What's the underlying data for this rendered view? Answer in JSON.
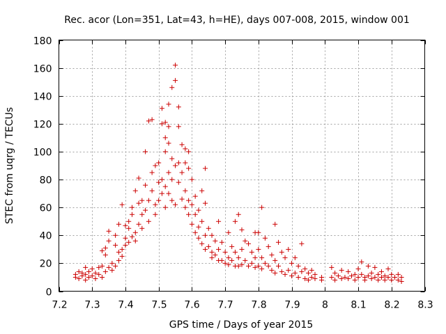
{
  "chart_data": {
    "type": "scatter",
    "title": "Rec. acor (Lon=351, Lat=43, h=HE), days 007-008, 2015, window 001",
    "xlabel": "GPS time / Days of year 2015",
    "ylabel": "STEC from uqrg / TECUs",
    "xlim": [
      7.2,
      8.3
    ],
    "ylim": [
      0,
      180
    ],
    "xticks": [
      7.2,
      7.3,
      7.4,
      7.5,
      7.6,
      7.7,
      7.8,
      7.9,
      8,
      8.1,
      8.2,
      8.3
    ],
    "xtick_labels": [
      "7.2",
      "7.3",
      "7.4",
      "7.5",
      "7.6",
      "7.7",
      "7.8",
      "7.9",
      "8",
      "8.1",
      "8.2",
      "8.3"
    ],
    "yticks": [
      0,
      20,
      40,
      60,
      80,
      100,
      120,
      140,
      160,
      180
    ],
    "ytick_labels": [
      "0",
      "20",
      "40",
      "60",
      "80",
      "100",
      "120",
      "140",
      "160",
      "180"
    ],
    "grid": true,
    "marker": "+",
    "color": "#cc0000",
    "series": [
      {
        "name": "STEC",
        "points": [
          [
            7.25,
            10
          ],
          [
            7.25,
            12
          ],
          [
            7.26,
            14
          ],
          [
            7.26,
            9
          ],
          [
            7.27,
            11
          ],
          [
            7.27,
            13
          ],
          [
            7.28,
            8
          ],
          [
            7.28,
            12
          ],
          [
            7.28,
            17
          ],
          [
            7.29,
            10
          ],
          [
            7.29,
            14
          ],
          [
            7.3,
            11
          ],
          [
            7.3,
            16
          ],
          [
            7.31,
            13
          ],
          [
            7.31,
            9
          ],
          [
            7.32,
            17
          ],
          [
            7.32,
            12
          ],
          [
            7.33,
            10
          ],
          [
            7.33,
            29
          ],
          [
            7.33,
            18
          ],
          [
            7.34,
            14
          ],
          [
            7.34,
            31
          ],
          [
            7.34,
            26
          ],
          [
            7.35,
            17
          ],
          [
            7.35,
            43
          ],
          [
            7.35,
            36
          ],
          [
            7.36,
            20
          ],
          [
            7.36,
            15
          ],
          [
            7.37,
            40
          ],
          [
            7.37,
            33
          ],
          [
            7.37,
            18
          ],
          [
            7.38,
            22
          ],
          [
            7.38,
            48
          ],
          [
            7.38,
            28
          ],
          [
            7.39,
            25
          ],
          [
            7.39,
            30
          ],
          [
            7.39,
            62
          ],
          [
            7.4,
            47
          ],
          [
            7.4,
            33
          ],
          [
            7.4,
            38
          ],
          [
            7.41,
            35
          ],
          [
            7.41,
            45
          ],
          [
            7.41,
            50
          ],
          [
            7.42,
            39
          ],
          [
            7.42,
            60
          ],
          [
            7.42,
            55
          ],
          [
            7.43,
            42
          ],
          [
            7.43,
            72
          ],
          [
            7.43,
            36
          ],
          [
            7.44,
            48
          ],
          [
            7.44,
            63
          ],
          [
            7.44,
            81
          ],
          [
            7.45,
            55
          ],
          [
            7.45,
            65
          ],
          [
            7.45,
            45
          ],
          [
            7.46,
            100
          ],
          [
            7.46,
            76
          ],
          [
            7.46,
            58
          ],
          [
            7.47,
            122
          ],
          [
            7.47,
            65
          ],
          [
            7.47,
            50
          ],
          [
            7.48,
            123
          ],
          [
            7.48,
            85
          ],
          [
            7.48,
            72
          ],
          [
            7.49,
            62
          ],
          [
            7.49,
            90
          ],
          [
            7.49,
            55
          ],
          [
            7.5,
            78
          ],
          [
            7.5,
            92
          ],
          [
            7.5,
            65
          ],
          [
            7.51,
            131
          ],
          [
            7.51,
            120
          ],
          [
            7.51,
            80
          ],
          [
            7.51,
            70
          ],
          [
            7.52,
            121
          ],
          [
            7.52,
            110
          ],
          [
            7.52,
            100
          ],
          [
            7.52,
            75
          ],
          [
            7.52,
            60
          ],
          [
            7.53,
            134
          ],
          [
            7.53,
            118
          ],
          [
            7.53,
            106
          ],
          [
            7.53,
            85
          ],
          [
            7.53,
            70
          ],
          [
            7.54,
            146
          ],
          [
            7.54,
            95
          ],
          [
            7.54,
            80
          ],
          [
            7.54,
            65
          ],
          [
            7.55,
            162
          ],
          [
            7.55,
            151
          ],
          [
            7.55,
            90
          ],
          [
            7.55,
            62
          ],
          [
            7.56,
            132
          ],
          [
            7.56,
            118
          ],
          [
            7.56,
            92
          ],
          [
            7.56,
            78
          ],
          [
            7.57,
            105
          ],
          [
            7.57,
            85
          ],
          [
            7.57,
            66
          ],
          [
            7.58,
            102
          ],
          [
            7.58,
            92
          ],
          [
            7.58,
            72
          ],
          [
            7.58,
            60
          ],
          [
            7.59,
            100
          ],
          [
            7.59,
            88
          ],
          [
            7.59,
            65
          ],
          [
            7.59,
            55
          ],
          [
            7.6,
            80
          ],
          [
            7.6,
            62
          ],
          [
            7.6,
            48
          ],
          [
            7.61,
            68
          ],
          [
            7.61,
            55
          ],
          [
            7.61,
            42
          ],
          [
            7.62,
            58
          ],
          [
            7.62,
            46
          ],
          [
            7.62,
            38
          ],
          [
            7.63,
            72
          ],
          [
            7.63,
            50
          ],
          [
            7.63,
            34
          ],
          [
            7.64,
            88
          ],
          [
            7.64,
            63
          ],
          [
            7.64,
            40
          ],
          [
            7.64,
            30
          ],
          [
            7.65,
            45
          ],
          [
            7.65,
            32
          ],
          [
            7.66,
            40
          ],
          [
            7.66,
            28
          ],
          [
            7.66,
            24
          ],
          [
            7.67,
            36
          ],
          [
            7.67,
            26
          ],
          [
            7.68,
            50
          ],
          [
            7.68,
            30
          ],
          [
            7.68,
            22
          ],
          [
            7.69,
            35
          ],
          [
            7.69,
            22
          ],
          [
            7.7,
            28
          ],
          [
            7.7,
            20
          ],
          [
            7.71,
            42
          ],
          [
            7.71,
            24
          ],
          [
            7.71,
            19
          ],
          [
            7.72,
            32
          ],
          [
            7.72,
            22
          ],
          [
            7.73,
            50
          ],
          [
            7.73,
            28
          ],
          [
            7.73,
            18
          ],
          [
            7.74,
            55
          ],
          [
            7.74,
            24
          ],
          [
            7.74,
            18
          ],
          [
            7.75,
            44
          ],
          [
            7.75,
            30
          ],
          [
            7.75,
            19
          ],
          [
            7.76,
            36
          ],
          [
            7.76,
            22
          ],
          [
            7.77,
            34
          ],
          [
            7.77,
            18
          ],
          [
            7.78,
            28
          ],
          [
            7.78,
            20
          ],
          [
            7.79,
            42
          ],
          [
            7.79,
            24
          ],
          [
            7.79,
            17
          ],
          [
            7.8,
            42
          ],
          [
            7.8,
            30
          ],
          [
            7.8,
            18
          ],
          [
            7.81,
            60
          ],
          [
            7.81,
            24
          ],
          [
            7.81,
            16
          ],
          [
            7.82,
            38
          ],
          [
            7.82,
            20
          ],
          [
            7.83,
            32
          ],
          [
            7.83,
            18
          ],
          [
            7.84,
            26
          ],
          [
            7.84,
            15
          ],
          [
            7.85,
            48
          ],
          [
            7.85,
            22
          ],
          [
            7.85,
            13
          ],
          [
            7.86,
            35
          ],
          [
            7.86,
            18
          ],
          [
            7.87,
            28
          ],
          [
            7.87,
            14
          ],
          [
            7.88,
            24
          ],
          [
            7.88,
            12
          ],
          [
            7.89,
            30
          ],
          [
            7.89,
            15
          ],
          [
            7.9,
            20
          ],
          [
            7.9,
            11
          ],
          [
            7.91,
            24
          ],
          [
            7.91,
            13
          ],
          [
            7.92,
            18
          ],
          [
            7.92,
            10
          ],
          [
            7.93,
            34
          ],
          [
            7.93,
            14
          ],
          [
            7.94,
            16
          ],
          [
            7.94,
            9
          ],
          [
            7.95,
            13
          ],
          [
            7.95,
            8
          ],
          [
            7.96,
            15
          ],
          [
            7.96,
            10
          ],
          [
            7.97,
            12
          ],
          [
            7.97,
            9
          ],
          [
            7.99,
            10
          ],
          [
            7.99,
            8
          ],
          [
            8.02,
            17
          ],
          [
            8.02,
            10
          ],
          [
            8.03,
            13
          ],
          [
            8.03,
            8
          ],
          [
            8.04,
            11
          ],
          [
            8.05,
            15
          ],
          [
            8.05,
            9
          ],
          [
            8.06,
            10
          ],
          [
            8.07,
            14
          ],
          [
            8.07,
            9
          ],
          [
            8.08,
            11
          ],
          [
            8.09,
            12
          ],
          [
            8.09,
            8
          ],
          [
            8.1,
            16
          ],
          [
            8.1,
            10
          ],
          [
            8.11,
            21
          ],
          [
            8.11,
            12
          ],
          [
            8.12,
            10
          ],
          [
            8.12,
            8
          ],
          [
            8.13,
            18
          ],
          [
            8.13,
            11
          ],
          [
            8.14,
            13
          ],
          [
            8.14,
            9
          ],
          [
            8.15,
            17
          ],
          [
            8.15,
            10
          ],
          [
            8.16,
            12
          ],
          [
            8.16,
            8
          ],
          [
            8.17,
            14
          ],
          [
            8.17,
            10
          ],
          [
            8.18,
            11
          ],
          [
            8.18,
            8
          ],
          [
            8.19,
            16
          ],
          [
            8.19,
            10
          ],
          [
            8.2,
            12
          ],
          [
            8.2,
            8
          ],
          [
            8.21,
            10
          ],
          [
            8.22,
            12
          ],
          [
            8.22,
            8
          ],
          [
            8.23,
            10
          ],
          [
            8.23,
            7
          ]
        ]
      }
    ]
  }
}
